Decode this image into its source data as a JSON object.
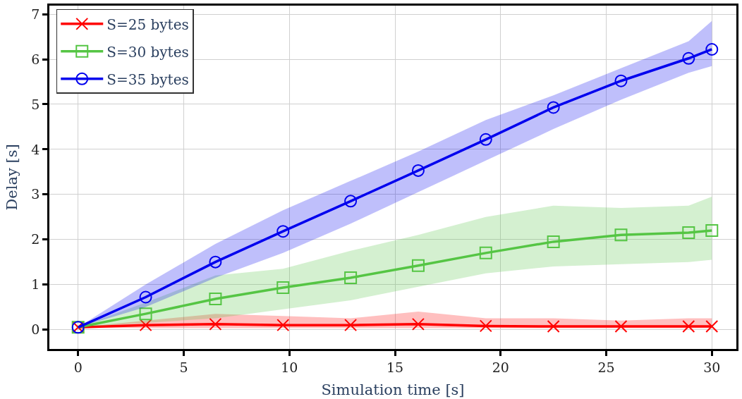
{
  "chart_data": {
    "type": "line",
    "xlabel": "Simulation time [s]",
    "ylabel": "Delay [s]",
    "xlim": [
      -1.36,
      31.16
    ],
    "ylim": [
      -0.43,
      7.19
    ],
    "xticks": [
      0,
      5,
      10,
      15,
      20,
      25,
      30
    ],
    "yticks": [
      0,
      1,
      2,
      3,
      4,
      5,
      6,
      7
    ],
    "grid": true,
    "legend": "top left",
    "x": [
      0,
      3.2,
      6.5,
      9.7,
      12.9,
      16.1,
      19.3,
      22.5,
      25.7,
      28.9,
      30
    ],
    "series": [
      {
        "name": "S=25 bytes",
        "color": "#ff0000",
        "marker": "cross",
        "values": [
          0.05,
          0.1,
          0.12,
          0.1,
          0.1,
          0.12,
          0.08,
          0.07,
          0.07,
          0.07,
          0.07
        ],
        "lower": [
          0.05,
          0.03,
          0.03,
          0.03,
          0.03,
          0.03,
          0.03,
          0.03,
          0.03,
          0.03,
          0.03
        ],
        "upper": [
          0.05,
          0.2,
          0.35,
          0.3,
          0.25,
          0.4,
          0.25,
          0.25,
          0.2,
          0.25,
          0.25
        ]
      },
      {
        "name": "S=30 bytes",
        "color": "#55c544",
        "marker": "square",
        "values": [
          0.05,
          0.35,
          0.68,
          0.93,
          1.15,
          1.42,
          1.7,
          1.95,
          2.1,
          2.15,
          2.2
        ],
        "lower": [
          0.05,
          0.15,
          0.25,
          0.45,
          0.65,
          0.95,
          1.25,
          1.4,
          1.45,
          1.5,
          1.55
        ],
        "upper": [
          0.05,
          0.6,
          1.2,
          1.35,
          1.75,
          2.1,
          2.5,
          2.75,
          2.7,
          2.75,
          2.95
        ]
      },
      {
        "name": "S=35 bytes",
        "color": "#0000ee",
        "marker": "circle",
        "values": [
          0.05,
          0.72,
          1.5,
          2.18,
          2.85,
          3.53,
          4.22,
          4.93,
          5.52,
          6.02,
          6.22
        ],
        "lower": [
          0.05,
          0.5,
          1.15,
          1.7,
          2.35,
          3.05,
          3.75,
          4.45,
          5.1,
          5.7,
          5.85
        ],
        "upper": [
          0.05,
          1.0,
          1.9,
          2.65,
          3.3,
          3.95,
          4.65,
          5.2,
          5.8,
          6.4,
          6.85
        ]
      }
    ]
  }
}
